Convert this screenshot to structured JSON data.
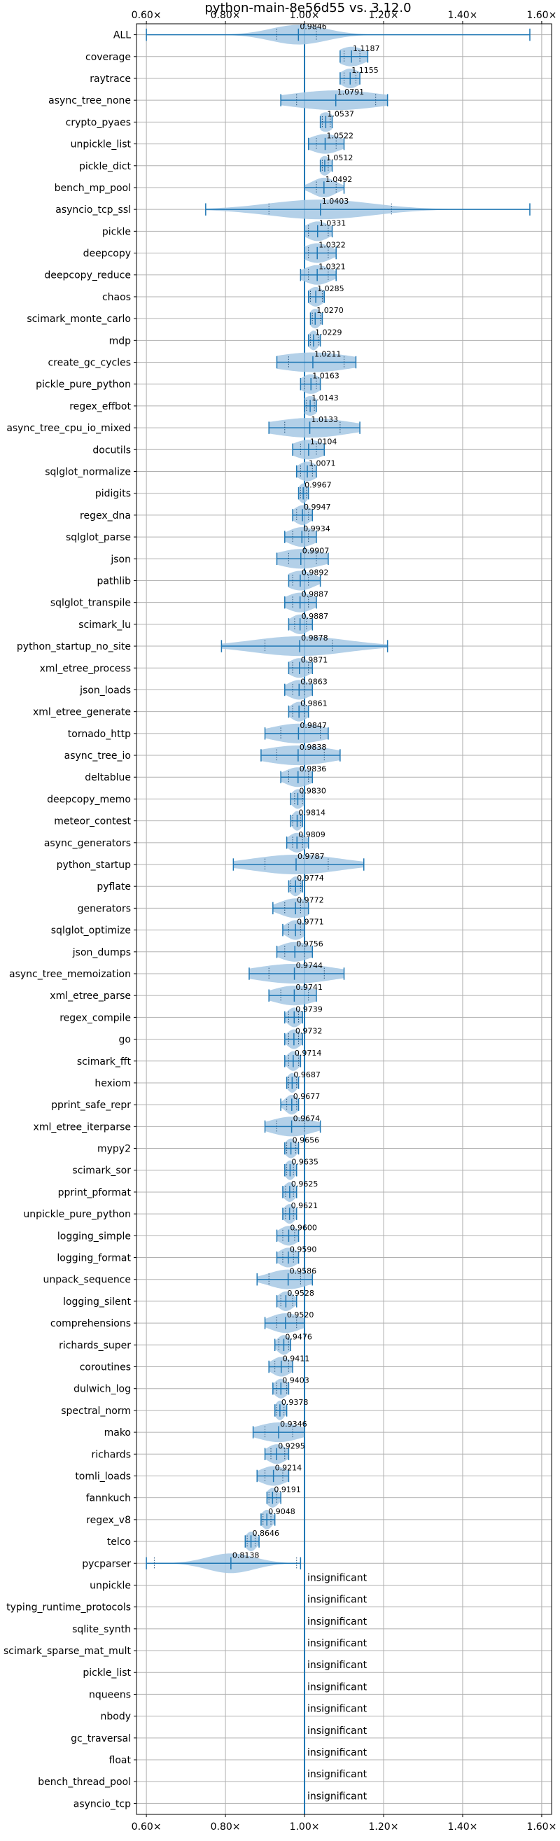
{
  "chart_data": {
    "type": "violin",
    "title": "python-main-8e56d55 vs. 3.12.0",
    "xlim": [
      0.575,
      1.625
    ],
    "xticks": [
      0.6,
      0.8,
      1.0,
      1.2,
      1.4,
      1.6
    ],
    "xtick_labels": [
      "0.60×",
      "0.80×",
      "1.00×",
      "1.20×",
      "1.40×",
      "1.60×"
    ],
    "reference_line": 1.0,
    "grid": true,
    "colors": {
      "violin": "#a6c8e4",
      "whisker": "#1f77b4",
      "grid": "#b0b0b0"
    },
    "insignificant_label": "insignificant",
    "benchmarks": [
      {
        "name": "ALL",
        "value": 0.9846,
        "label": "0.9846",
        "min": 0.6,
        "max": 1.57,
        "q1": 0.93,
        "q3": 1.03,
        "spread": 0.07
      },
      {
        "name": "coverage",
        "value": 1.1187,
        "label": "1.1187",
        "min": 1.09,
        "max": 1.16,
        "q1": 1.1,
        "q3": 1.14,
        "spread": 0.035
      },
      {
        "name": "raytrace",
        "value": 1.1155,
        "label": "1.1155",
        "min": 1.09,
        "max": 1.14,
        "q1": 1.1,
        "q3": 1.13,
        "spread": 0.025
      },
      {
        "name": "async_tree_none",
        "value": 1.0791,
        "label": "1.0791",
        "min": 0.94,
        "max": 1.21,
        "q1": 0.98,
        "q3": 1.18,
        "spread": 0.12
      },
      {
        "name": "crypto_pyaes",
        "value": 1.0537,
        "label": "1.0537",
        "min": 1.04,
        "max": 1.07,
        "q1": 1.045,
        "q3": 1.065,
        "spread": 0.02
      },
      {
        "name": "unpickle_list",
        "value": 1.0522,
        "label": "1.0522",
        "min": 1.01,
        "max": 1.1,
        "q1": 1.03,
        "q3": 1.08,
        "spread": 0.04
      },
      {
        "name": "pickle_dict",
        "value": 1.0512,
        "label": "1.0512",
        "min": 1.04,
        "max": 1.07,
        "q1": 1.045,
        "q3": 1.06,
        "spread": 0.015
      },
      {
        "name": "bench_mp_pool",
        "value": 1.0492,
        "label": "1.0492",
        "min": 1.0,
        "max": 1.1,
        "q1": 1.03,
        "q3": 1.08,
        "spread": 0.03
      },
      {
        "name": "asyncio_tcp_ssl",
        "value": 1.0403,
        "label": "1.0403",
        "min": 0.75,
        "max": 1.57,
        "q1": 0.91,
        "q3": 1.22,
        "spread": 0.13
      },
      {
        "name": "pickle",
        "value": 1.0331,
        "label": "1.0331",
        "min": 1.0,
        "max": 1.07,
        "q1": 1.01,
        "q3": 1.06,
        "spread": 0.03
      },
      {
        "name": "deepcopy",
        "value": 1.0322,
        "label": "1.0322",
        "min": 1.0,
        "max": 1.08,
        "q1": 1.01,
        "q3": 1.06,
        "spread": 0.035
      },
      {
        "name": "deepcopy_reduce",
        "value": 1.0321,
        "label": "1.0321",
        "min": 0.99,
        "max": 1.08,
        "q1": 1.01,
        "q3": 1.06,
        "spread": 0.035
      },
      {
        "name": "chaos",
        "value": 1.0285,
        "label": "1.0285",
        "min": 1.01,
        "max": 1.05,
        "q1": 1.015,
        "q3": 1.045,
        "spread": 0.02
      },
      {
        "name": "scimark_monte_carlo",
        "value": 1.027,
        "label": "1.0270",
        "min": 1.015,
        "max": 1.045,
        "q1": 1.02,
        "q3": 1.04,
        "spread": 0.015
      },
      {
        "name": "mdp",
        "value": 1.0229,
        "label": "1.0229",
        "min": 1.01,
        "max": 1.04,
        "q1": 1.015,
        "q3": 1.035,
        "spread": 0.013
      },
      {
        "name": "create_gc_cycles",
        "value": 1.0211,
        "label": "1.0211",
        "min": 0.93,
        "max": 1.13,
        "q1": 0.96,
        "q3": 1.1,
        "spread": 0.1
      },
      {
        "name": "pickle_pure_python",
        "value": 1.0163,
        "label": "1.0163",
        "min": 0.99,
        "max": 1.04,
        "q1": 1.0,
        "q3": 1.03,
        "spread": 0.025
      },
      {
        "name": "regex_effbot",
        "value": 1.0143,
        "label": "1.0143",
        "min": 1.0,
        "max": 1.03,
        "q1": 1.005,
        "q3": 1.025,
        "spread": 0.02
      },
      {
        "name": "async_tree_cpu_io_mixed",
        "value": 1.0133,
        "label": "1.0133",
        "min": 0.91,
        "max": 1.14,
        "q1": 0.95,
        "q3": 1.09,
        "spread": 0.1
      },
      {
        "name": "docutils",
        "value": 1.0104,
        "label": "1.0104",
        "min": 0.97,
        "max": 1.05,
        "q1": 0.99,
        "q3": 1.03,
        "spread": 0.04
      },
      {
        "name": "sqlglot_normalize",
        "value": 1.0071,
        "label": "1.0071",
        "min": 0.98,
        "max": 1.03,
        "q1": 0.99,
        "q3": 1.02,
        "spread": 0.025
      },
      {
        "name": "pidigits",
        "value": 0.9967,
        "label": "0.9967",
        "min": 0.985,
        "max": 1.01,
        "q1": 0.99,
        "q3": 1.005,
        "spread": 0.012
      },
      {
        "name": "regex_dna",
        "value": 0.9947,
        "label": "0.9947",
        "min": 0.97,
        "max": 1.02,
        "q1": 0.98,
        "q3": 1.01,
        "spread": 0.022
      },
      {
        "name": "sqlglot_parse",
        "value": 0.9934,
        "label": "0.9934",
        "min": 0.95,
        "max": 1.03,
        "q1": 0.97,
        "q3": 1.01,
        "spread": 0.035
      },
      {
        "name": "json",
        "value": 0.9907,
        "label": "0.9907",
        "min": 0.93,
        "max": 1.06,
        "q1": 0.96,
        "q3": 1.03,
        "spread": 0.06
      },
      {
        "name": "pathlib",
        "value": 0.9892,
        "label": "0.9892",
        "min": 0.96,
        "max": 1.04,
        "q1": 0.97,
        "q3": 1.01,
        "spread": 0.035
      },
      {
        "name": "sqlglot_transpile",
        "value": 0.9887,
        "label": "0.9887",
        "min": 0.95,
        "max": 1.03,
        "q1": 0.97,
        "q3": 1.01,
        "spread": 0.035
      },
      {
        "name": "scimark_lu",
        "value": 0.9887,
        "label": "0.9887",
        "min": 0.96,
        "max": 1.02,
        "q1": 0.975,
        "q3": 1.005,
        "spread": 0.025
      },
      {
        "name": "python_startup_no_site",
        "value": 0.9878,
        "label": "0.9878",
        "min": 0.79,
        "max": 1.21,
        "q1": 0.9,
        "q3": 1.07,
        "spread": 0.12
      },
      {
        "name": "xml_etree_process",
        "value": 0.9871,
        "label": "0.9871",
        "min": 0.96,
        "max": 1.02,
        "q1": 0.97,
        "q3": 1.01,
        "spread": 0.028
      },
      {
        "name": "json_loads",
        "value": 0.9863,
        "label": "0.9863",
        "min": 0.95,
        "max": 1.02,
        "q1": 0.97,
        "q3": 1.0,
        "spread": 0.03
      },
      {
        "name": "xml_etree_generate",
        "value": 0.9861,
        "label": "0.9861",
        "min": 0.96,
        "max": 1.01,
        "q1": 0.97,
        "q3": 1.0,
        "spread": 0.022
      },
      {
        "name": "tornado_http",
        "value": 0.9847,
        "label": "0.9847",
        "min": 0.9,
        "max": 1.06,
        "q1": 0.94,
        "q3": 1.04,
        "spread": 0.07
      },
      {
        "name": "async_tree_io",
        "value": 0.9838,
        "label": "0.9838",
        "min": 0.89,
        "max": 1.09,
        "q1": 0.93,
        "q3": 1.05,
        "spread": 0.09
      },
      {
        "name": "deltablue",
        "value": 0.9836,
        "label": "0.9836",
        "min": 0.94,
        "max": 1.02,
        "q1": 0.96,
        "q3": 1.01,
        "spread": 0.035
      },
      {
        "name": "deepcopy_memo",
        "value": 0.983,
        "label": "0.9830",
        "min": 0.965,
        "max": 1.0,
        "q1": 0.975,
        "q3": 0.995,
        "spread": 0.016
      },
      {
        "name": "meteor_contest",
        "value": 0.9814,
        "label": "0.9814",
        "min": 0.965,
        "max": 0.995,
        "q1": 0.97,
        "q3": 0.99,
        "spread": 0.013
      },
      {
        "name": "async_generators",
        "value": 0.9809,
        "label": "0.9809",
        "min": 0.955,
        "max": 1.01,
        "q1": 0.97,
        "q3": 0.995,
        "spread": 0.022
      },
      {
        "name": "python_startup",
        "value": 0.9787,
        "label": "0.9787",
        "min": 0.82,
        "max": 1.15,
        "q1": 0.9,
        "q3": 1.06,
        "spread": 0.11
      },
      {
        "name": "pyflate",
        "value": 0.9774,
        "label": "0.9774",
        "min": 0.96,
        "max": 0.995,
        "q1": 0.965,
        "q3": 0.99,
        "spread": 0.015
      },
      {
        "name": "generators",
        "value": 0.9772,
        "label": "0.9772",
        "min": 0.92,
        "max": 1.01,
        "q1": 0.95,
        "q3": 0.99,
        "spread": 0.04
      },
      {
        "name": "sqlglot_optimize",
        "value": 0.9771,
        "label": "0.9771",
        "min": 0.945,
        "max": 1.0,
        "q1": 0.96,
        "q3": 0.99,
        "spread": 0.024
      },
      {
        "name": "json_dumps",
        "value": 0.9756,
        "label": "0.9756",
        "min": 0.93,
        "max": 1.02,
        "q1": 0.95,
        "q3": 1.0,
        "spread": 0.04
      },
      {
        "name": "async_tree_memoization",
        "value": 0.9744,
        "label": "0.9744",
        "min": 0.86,
        "max": 1.1,
        "q1": 0.91,
        "q3": 1.05,
        "spread": 0.1
      },
      {
        "name": "xml_etree_parse",
        "value": 0.9741,
        "label": "0.9741",
        "min": 0.91,
        "max": 1.03,
        "q1": 0.94,
        "q3": 1.01,
        "spread": 0.055
      },
      {
        "name": "regex_compile",
        "value": 0.9739,
        "label": "0.9739",
        "min": 0.95,
        "max": 0.995,
        "q1": 0.96,
        "q3": 0.985,
        "spread": 0.018
      },
      {
        "name": "go",
        "value": 0.9732,
        "label": "0.9732",
        "min": 0.95,
        "max": 0.995,
        "q1": 0.96,
        "q3": 0.985,
        "spread": 0.018
      },
      {
        "name": "scimark_fft",
        "value": 0.9714,
        "label": "0.9714",
        "min": 0.95,
        "max": 0.99,
        "q1": 0.96,
        "q3": 0.985,
        "spread": 0.016
      },
      {
        "name": "hexiom",
        "value": 0.9687,
        "label": "0.9687",
        "min": 0.955,
        "max": 0.985,
        "q1": 0.96,
        "q3": 0.98,
        "spread": 0.013
      },
      {
        "name": "pprint_safe_repr",
        "value": 0.9677,
        "label": "0.9677",
        "min": 0.94,
        "max": 0.985,
        "q1": 0.955,
        "q3": 0.98,
        "spread": 0.017
      },
      {
        "name": "xml_etree_iterparse",
        "value": 0.9674,
        "label": "0.9674",
        "min": 0.9,
        "max": 1.04,
        "q1": 0.93,
        "q3": 1.0,
        "spread": 0.055
      },
      {
        "name": "mypy2",
        "value": 0.9656,
        "label": "0.9656",
        "min": 0.95,
        "max": 0.985,
        "q1": 0.955,
        "q3": 0.978,
        "spread": 0.015
      },
      {
        "name": "scimark_sor",
        "value": 0.9635,
        "label": "0.9635",
        "min": 0.95,
        "max": 0.98,
        "q1": 0.955,
        "q3": 0.972,
        "spread": 0.013
      },
      {
        "name": "pprint_pformat",
        "value": 0.9625,
        "label": "0.9625",
        "min": 0.945,
        "max": 0.98,
        "q1": 0.952,
        "q3": 0.972,
        "spread": 0.015
      },
      {
        "name": "unpickle_pure_python",
        "value": 0.9621,
        "label": "0.9621",
        "min": 0.945,
        "max": 0.98,
        "q1": 0.952,
        "q3": 0.972,
        "spread": 0.015
      },
      {
        "name": "logging_simple",
        "value": 0.96,
        "label": "0.9600",
        "min": 0.93,
        "max": 0.985,
        "q1": 0.945,
        "q3": 0.975,
        "spread": 0.025
      },
      {
        "name": "logging_format",
        "value": 0.959,
        "label": "0.9590",
        "min": 0.93,
        "max": 0.985,
        "q1": 0.945,
        "q3": 0.972,
        "spread": 0.025
      },
      {
        "name": "unpack_sequence",
        "value": 0.9586,
        "label": "0.9586",
        "min": 0.88,
        "max": 1.02,
        "q1": 0.91,
        "q3": 0.99,
        "spread": 0.05
      },
      {
        "name": "logging_silent",
        "value": 0.9528,
        "label": "0.9528",
        "min": 0.93,
        "max": 0.98,
        "q1": 0.94,
        "q3": 0.97,
        "spread": 0.02
      },
      {
        "name": "comprehensions",
        "value": 0.952,
        "label": "0.9520",
        "min": 0.9,
        "max": 1.0,
        "q1": 0.93,
        "q3": 0.98,
        "spread": 0.04
      },
      {
        "name": "richards_super",
        "value": 0.9476,
        "label": "0.9476",
        "min": 0.925,
        "max": 0.965,
        "q1": 0.935,
        "q3": 0.96,
        "spread": 0.017
      },
      {
        "name": "coroutines",
        "value": 0.9411,
        "label": "0.9411",
        "min": 0.91,
        "max": 0.97,
        "q1": 0.925,
        "q3": 0.96,
        "spread": 0.025
      },
      {
        "name": "dulwich_log",
        "value": 0.9403,
        "label": "0.9403",
        "min": 0.92,
        "max": 0.96,
        "q1": 0.93,
        "q3": 0.955,
        "spread": 0.017
      },
      {
        "name": "spectral_norm",
        "value": 0.9378,
        "label": "0.9378",
        "min": 0.925,
        "max": 0.955,
        "q1": 0.93,
        "q3": 0.948,
        "spread": 0.012
      },
      {
        "name": "mako",
        "value": 0.9346,
        "label": "0.9346",
        "min": 0.87,
        "max": 1.0,
        "q1": 0.9,
        "q3": 0.97,
        "spread": 0.055
      },
      {
        "name": "richards",
        "value": 0.9295,
        "label": "0.9295",
        "min": 0.9,
        "max": 0.96,
        "q1": 0.915,
        "q3": 0.95,
        "spread": 0.025
      },
      {
        "name": "tomli_loads",
        "value": 0.9214,
        "label": "0.9214",
        "min": 0.88,
        "max": 0.96,
        "q1": 0.9,
        "q3": 0.945,
        "spread": 0.035
      },
      {
        "name": "fannkuch",
        "value": 0.9191,
        "label": "0.9191",
        "min": 0.905,
        "max": 0.94,
        "q1": 0.91,
        "q3": 0.93,
        "spread": 0.015
      },
      {
        "name": "regex_v8",
        "value": 0.9048,
        "label": "0.9048",
        "min": 0.89,
        "max": 0.925,
        "q1": 0.895,
        "q3": 0.915,
        "spread": 0.014
      },
      {
        "name": "telco",
        "value": 0.8646,
        "label": "0.8646",
        "min": 0.85,
        "max": 0.885,
        "q1": 0.855,
        "q3": 0.875,
        "spread": 0.014
      },
      {
        "name": "pycparser",
        "value": 0.8138,
        "label": "0.8138",
        "min": 0.6,
        "max": 0.99,
        "q1": 0.62,
        "q3": 0.98,
        "spread": 0.06
      },
      {
        "name": "unpickle",
        "insignificant": true
      },
      {
        "name": "typing_runtime_protocols",
        "insignificant": true
      },
      {
        "name": "sqlite_synth",
        "insignificant": true
      },
      {
        "name": "scimark_sparse_mat_mult",
        "insignificant": true
      },
      {
        "name": "pickle_list",
        "insignificant": true
      },
      {
        "name": "nqueens",
        "insignificant": true
      },
      {
        "name": "nbody",
        "insignificant": true
      },
      {
        "name": "gc_traversal",
        "insignificant": true
      },
      {
        "name": "float",
        "insignificant": true
      },
      {
        "name": "bench_thread_pool",
        "insignificant": true
      },
      {
        "name": "asyncio_tcp",
        "insignificant": true
      }
    ]
  }
}
